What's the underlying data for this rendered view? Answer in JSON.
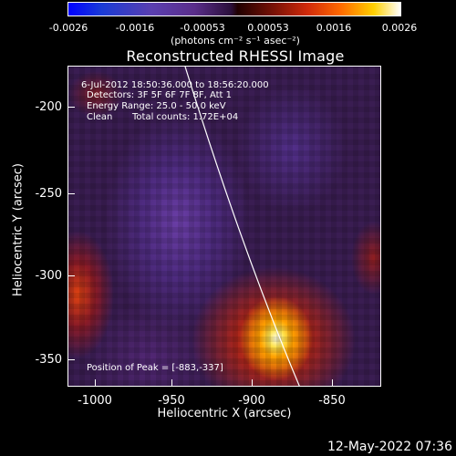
{
  "colorbar": {
    "tick_labels": [
      "-0.0026",
      "-0.0016",
      "-0.00053",
      "0.00053",
      "0.0016",
      "0.0026"
    ],
    "units": "(photons cm⁻² s⁻¹ asec⁻²)"
  },
  "title": "Reconstructed RHESSI Image",
  "info": {
    "time_range": "6-Jul-2012 18:50:36.000 to 18:56:20.000",
    "detectors": "Detectors: 3F 5F 6F 7F 8F, Att 1",
    "energy_range": "Energy Range: 25.0 - 50.0 keV",
    "algorithm": "Clean",
    "total_counts": "Total counts: 1.72E+04",
    "peak_position": "Position of Peak = [-883,-337]"
  },
  "axes": {
    "ylabel": "Heliocentric  Y (arcsec)",
    "xlabel": "Heliocentric X (arcsec)",
    "yticks": [
      "-200",
      "-250",
      "-300",
      "-350"
    ],
    "xticks": [
      "-1000",
      "-950",
      "-900",
      "-850"
    ]
  },
  "timestamp": "12-May-2022 07:36"
}
